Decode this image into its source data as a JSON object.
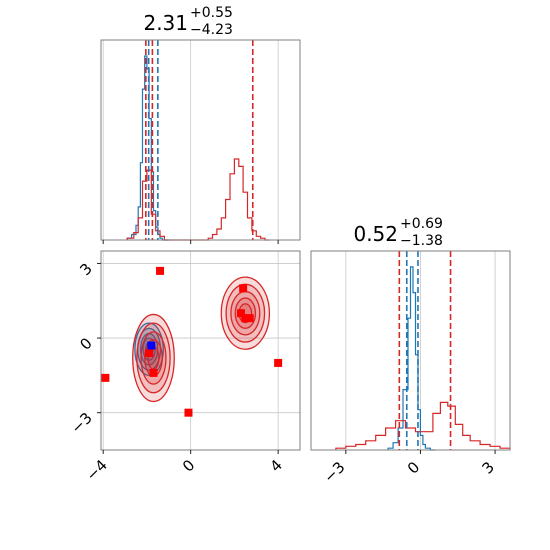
{
  "chart_data": [
    {
      "panel": "marginal-x",
      "type": "histogram",
      "title": {
        "value": "2.31",
        "upper": "+0.55",
        "lower": "−4.23"
      },
      "xlim": [
        -4.1,
        5.0
      ],
      "grid": true,
      "x_tick_labels_shown": false,
      "series": [
        {
          "color": "#1f77b4",
          "edges": [
            -2.9,
            -2.7,
            -2.5,
            -2.4,
            -2.3,
            -2.2,
            -2.1,
            -2.0,
            -1.9,
            -1.8,
            -1.7,
            -1.6,
            -1.5,
            -1.4,
            -1.3,
            -1.2,
            -1.0
          ],
          "counts": [
            0.01,
            0.03,
            0.08,
            0.18,
            0.42,
            0.82,
            1.0,
            0.93,
            0.66,
            0.37,
            0.16,
            0.07,
            0.03,
            0.01,
            0.0,
            0.0
          ]
        },
        {
          "color": "#d62728",
          "edges": [
            -2.9,
            -2.6,
            -2.4,
            -2.2,
            -2.0,
            -1.8,
            -1.6,
            -1.4,
            -1.2,
            -1.0,
            0.8,
            1.0,
            1.2,
            1.4,
            1.6,
            1.8,
            2.0,
            2.2,
            2.4,
            2.6,
            2.8,
            3.0,
            3.2,
            3.4,
            3.6
          ],
          "counts": [
            0.01,
            0.04,
            0.12,
            0.32,
            0.38,
            0.14,
            0.05,
            0.02,
            0.0,
            0.0,
            0.01,
            0.03,
            0.06,
            0.12,
            0.22,
            0.36,
            0.44,
            0.4,
            0.26,
            0.12,
            0.05,
            0.02,
            0.01,
            0.0
          ]
        }
      ],
      "vlines": [
        {
          "x": -2.05,
          "color": "#d62728"
        },
        {
          "x": -1.92,
          "color": "#1f77b4"
        },
        {
          "x": -1.75,
          "color": "#d62728"
        },
        {
          "x": -1.5,
          "color": "#1f77b4"
        },
        {
          "x": 2.84,
          "color": "#d62728"
        }
      ]
    },
    {
      "panel": "joint",
      "type": "scatter",
      "xlim": [
        -4.1,
        5.0
      ],
      "ylim": [
        -4.5,
        3.5
      ],
      "grid": true,
      "x_ticks": [
        "−4",
        "0",
        "4"
      ],
      "x_tick_values": [
        -4,
        0,
        4
      ],
      "y_ticks": [
        "−3",
        "0",
        "3"
      ],
      "y_tick_values": [
        -3,
        0,
        3
      ],
      "contours": [
        {
          "cx": -1.9,
          "cy": -0.45,
          "rx": 0.65,
          "ry": 1.05,
          "color": "#1f77b4"
        },
        {
          "cx": -1.7,
          "cy": -0.8,
          "rx": 0.95,
          "ry": 1.75,
          "color": "#d62728"
        },
        {
          "cx": 2.5,
          "cy": 1.0,
          "rx": 1.1,
          "ry": 1.45,
          "color": "#d62728"
        }
      ],
      "series": [
        {
          "color": "#ff0000",
          "points": [
            [
              -1.4,
              2.7
            ],
            [
              -3.9,
              -1.6
            ],
            [
              2.4,
              2.0
            ],
            [
              2.3,
              1.0
            ],
            [
              2.5,
              0.8
            ],
            [
              2.7,
              0.8
            ],
            [
              4.0,
              -1.0
            ],
            [
              -1.7,
              -1.4
            ],
            [
              -1.9,
              -0.6
            ],
            [
              -0.1,
              -3.0
            ]
          ]
        },
        {
          "color": "#0000ff",
          "points": [
            [
              -1.8,
              -0.3
            ]
          ]
        }
      ]
    },
    {
      "panel": "marginal-y",
      "type": "histogram",
      "title": {
        "value": "0.52",
        "upper": "+0.69",
        "lower": "−1.38"
      },
      "xlim": [
        -4.4,
        3.6
      ],
      "grid": true,
      "x_ticks": [
        "−3",
        "0",
        "3"
      ],
      "x_tick_values": [
        -3,
        0,
        3
      ],
      "series": [
        {
          "color": "#1f77b4",
          "edges": [
            -1.3,
            -1.1,
            -0.9,
            -0.7,
            -0.5,
            -0.4,
            -0.3,
            -0.2,
            -0.1,
            0.0,
            0.1,
            0.2,
            0.4,
            0.6
          ],
          "counts": [
            0.01,
            0.04,
            0.12,
            0.33,
            0.72,
            1.0,
            0.86,
            0.52,
            0.22,
            0.08,
            0.03,
            0.01,
            0.0
          ]
        },
        {
          "color": "#d62728",
          "edges": [
            -3.4,
            -3.0,
            -2.6,
            -2.2,
            -1.8,
            -1.4,
            -1.0,
            -0.6,
            -0.2,
            0.2,
            0.5,
            0.8,
            1.1,
            1.4,
            1.7,
            2.0,
            2.4,
            2.8,
            3.2,
            3.6
          ],
          "counts": [
            0.01,
            0.02,
            0.03,
            0.05,
            0.08,
            0.12,
            0.16,
            0.12,
            0.1,
            0.1,
            0.2,
            0.26,
            0.24,
            0.14,
            0.08,
            0.05,
            0.03,
            0.02,
            0.01
          ]
        }
      ],
      "vlines": [
        {
          "x": -0.85,
          "color": "#d62728"
        },
        {
          "x": -0.55,
          "color": "#1f77b4"
        },
        {
          "x": -0.1,
          "color": "#1f77b4"
        },
        {
          "x": 1.21,
          "color": "#d62728"
        }
      ]
    }
  ]
}
